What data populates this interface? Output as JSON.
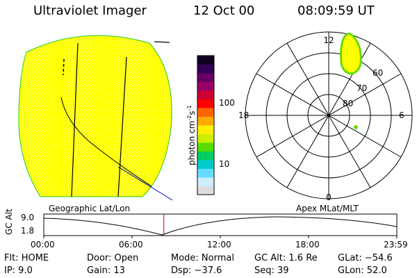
{
  "header": {
    "instrument": "Ultraviolet Imager",
    "date": "12 Oct 00",
    "time": "08:09:59 UT"
  },
  "colorbar": {
    "label": "photon cm",
    "label_exp1": "-2",
    "label_mid": "s",
    "label_exp2": "-1",
    "tick_high": "100",
    "tick_low": "10",
    "colors": [
      "#dddddd",
      "#cceeff",
      "#66ddff",
      "#00cccc",
      "#00cc66",
      "#55dd00",
      "#ccee00",
      "#ffee00",
      "#ffaa00",
      "#ff6600",
      "#ff0000",
      "#cc0033",
      "#990066",
      "#660066",
      "#330055",
      "#110022"
    ]
  },
  "polar_plot": {
    "hours": {
      "top": "12",
      "left": "18",
      "right": "6",
      "bottom": "0"
    },
    "latitudes": [
      "60",
      "70",
      "80"
    ]
  },
  "timeline": {
    "left_label": "Geographic Lat/Lon",
    "right_label": "Apex MLat/MLT",
    "y_axis_label": "GC Alt",
    "y_ticks": [
      "9.0",
      "1.8"
    ],
    "x_ticks": [
      "00:00",
      "06:00",
      "12:00",
      "18:00",
      "23:59"
    ],
    "current_time_fraction": 0.34
  },
  "info": {
    "flt": "Flt: HOME",
    "ip": "IP:  9.0",
    "door": "Door: Open",
    "gain": "Gain: 13",
    "mode": "Mode: Normal",
    "dsp": "Dsp:  −37.6",
    "gcalt": "GC Alt: 1.6 Re",
    "seq": "Seq: 39",
    "glat": "GLat: −54.6",
    "glon": "GLon:  52.0"
  }
}
